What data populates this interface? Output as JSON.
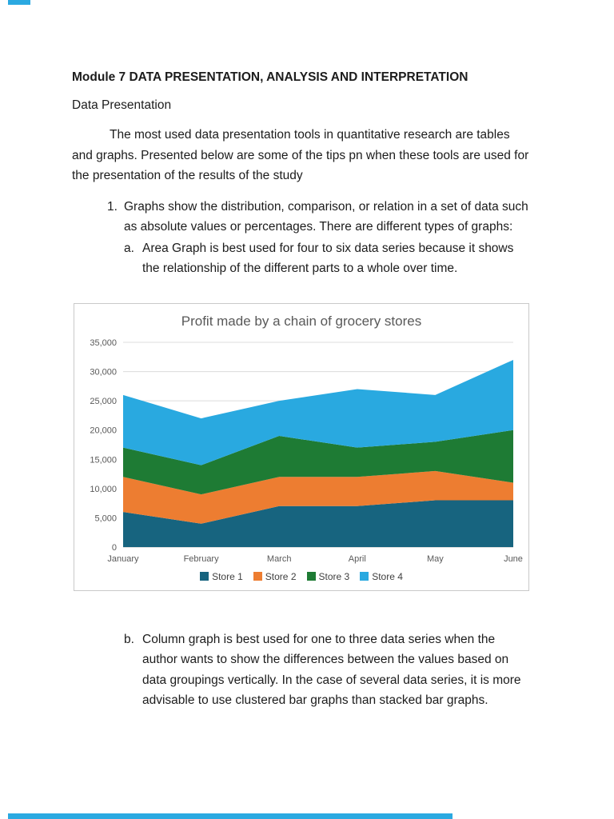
{
  "page": {
    "title": "Module 7 DATA PRESENTATION, ANALYSIS AND INTERPRETATION",
    "section_heading": "Data Presentation",
    "intro_paragraph": "The most used data presentation tools in quantitative research are tables and graphs. Presented below are some of the tips pn when these tools are used for the presentation of the results of the study",
    "list": {
      "item1_number": "1.",
      "item1_text": "Graphs show the distribution, comparison, or relation in a set of data such as absolute values or percentages. There are different types of graphs:",
      "item1a_letter": "a.",
      "item1a_text": "Area Graph is best used for four to six data series because it shows the relationship of the different parts to a whole over time.",
      "item1b_letter": "b.",
      "item1b_text": "Column graph is best used for one to three data series when the author wants to show the differences between the values based on data groupings vertically. In the case of several data series, it is more advisable to use clustered bar graphs than stacked bar graphs."
    }
  },
  "chart_data": {
    "type": "area",
    "stacked": true,
    "title": "Profit made by a chain of grocery stores",
    "title_color": "#595959",
    "categories": [
      "January",
      "February",
      "March",
      "April",
      "May",
      "June"
    ],
    "series": [
      {
        "name": "Store 1",
        "color": "#17647F",
        "values": [
          6000,
          4000,
          7000,
          7000,
          8000,
          8000
        ]
      },
      {
        "name": "Store 2",
        "color": "#ED7D31",
        "values": [
          6000,
          5000,
          5000,
          5000,
          5000,
          3000
        ]
      },
      {
        "name": "Store 3",
        "color": "#1E7B34",
        "values": [
          5000,
          5000,
          7000,
          5000,
          5000,
          9000
        ]
      },
      {
        "name": "Store 4",
        "color": "#29A9E0",
        "values": [
          9000,
          8000,
          6000,
          10000,
          8000,
          12000
        ]
      }
    ],
    "ylim": [
      0,
      35000
    ],
    "ytick_step": 5000,
    "y_tick_labels": [
      "0",
      "5,000",
      "10,000",
      "15,000",
      "20,000",
      "25,000",
      "30,000",
      "35,000"
    ],
    "grid": true,
    "legend_position": "bottom"
  }
}
